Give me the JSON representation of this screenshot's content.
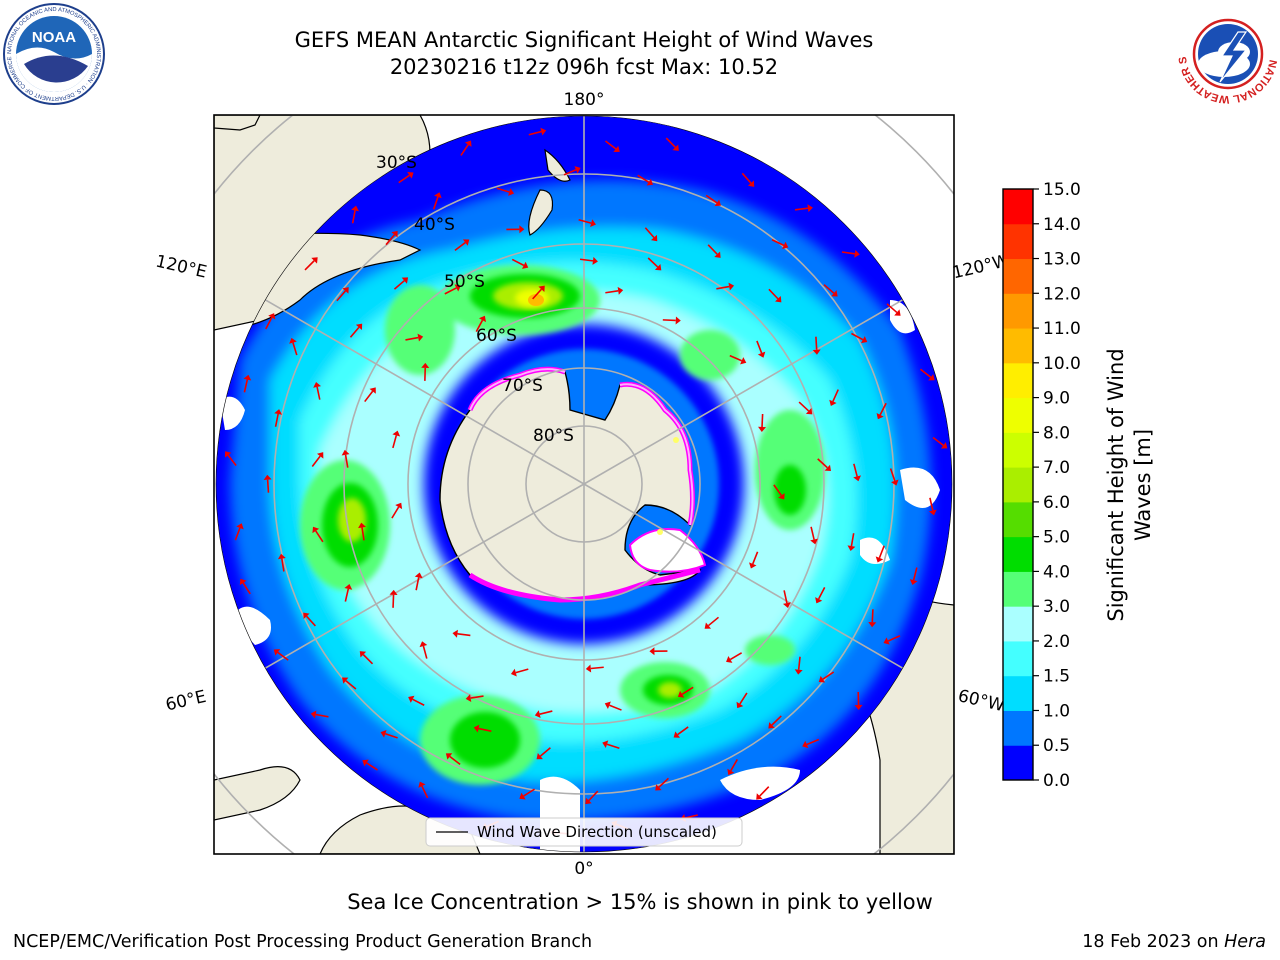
{
  "title_line1": "GEFS MEAN Antarctic Significant Height of Wind Waves",
  "title_line2": "20230216 t12z 096h fcst   Max: 10.52",
  "noaa_logo_text": "NOAA",
  "noaa_ring_text": "NATIONAL OCEANIC AND ATMOSPHERIC ADMINISTRATION · U.S. DEPARTMENT OF COMMERCE",
  "nws_ring_text": "NATIONAL WEATHER SERVICE",
  "map": {
    "projection": "south-polar-stereographic",
    "longitude_labels": {
      "top": "180°",
      "left_upper": "120°E",
      "right_upper": "120°W",
      "left_lower": "60°E",
      "right_lower": "60°W",
      "bottom": "0°"
    },
    "latitude_labels": [
      "30°S",
      "40°S",
      "50°S",
      "60°S",
      "70°S",
      "80°S"
    ],
    "max_value": 10.52,
    "max_location": "Southern Ocean south of Australia (~50°S, 130°E)",
    "legend_label": "Wind Wave Direction (unscaled)",
    "arrow_color": "#ee0000",
    "land_color": "#eeecdc",
    "sea_ice_colors": [
      "#ff00ff",
      "#ffb0ff",
      "#ffff66"
    ]
  },
  "colorbar": {
    "label_line1": "Significant Height of Wind",
    "label_line2": "Waves [m]",
    "ticks": [
      "0.0",
      "0.5",
      "1.0",
      "1.5",
      "2.0",
      "3.0",
      "4.0",
      "5.0",
      "6.0",
      "7.0",
      "8.0",
      "9.0",
      "10.0",
      "11.0",
      "12.0",
      "13.0",
      "14.0",
      "15.0"
    ],
    "colors": [
      "#0000ff",
      "#0077ff",
      "#00ddff",
      "#44ffff",
      "#aaffff",
      "#55ff77",
      "#00dd00",
      "#55dd00",
      "#aaee00",
      "#ccff00",
      "#eeff00",
      "#ffee00",
      "#ffbb00",
      "#ff9900",
      "#ff6600",
      "#ff3300",
      "#ff0000"
    ]
  },
  "footer": {
    "note": "Sea Ice Concentration > 15% is shown in pink to yellow",
    "left": "NCEP/EMC/Verification Post Processing Product Generation Branch",
    "right_prefix": "18 Feb 2023 on ",
    "right_machine": "Hera"
  }
}
